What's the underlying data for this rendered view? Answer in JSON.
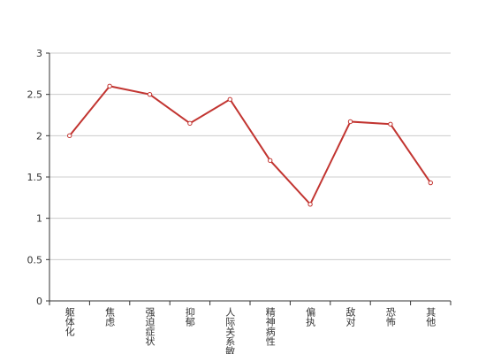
{
  "chart_data": {
    "type": "line",
    "categories": [
      "躯体化",
      "焦虑",
      "强迫症状",
      "抑郁",
      "人际关系敏感",
      "精神病性",
      "偏执",
      "敌对",
      "恐怖",
      "其他"
    ],
    "values": [
      2.0,
      2.6,
      2.5,
      2.15,
      2.44,
      1.7,
      1.17,
      2.17,
      2.14,
      1.43
    ],
    "color": "#c23531",
    "ylim": [
      0,
      3
    ],
    "yticks": [
      0,
      0.5,
      1,
      1.5,
      2,
      2.5,
      3
    ],
    "grid": true
  }
}
